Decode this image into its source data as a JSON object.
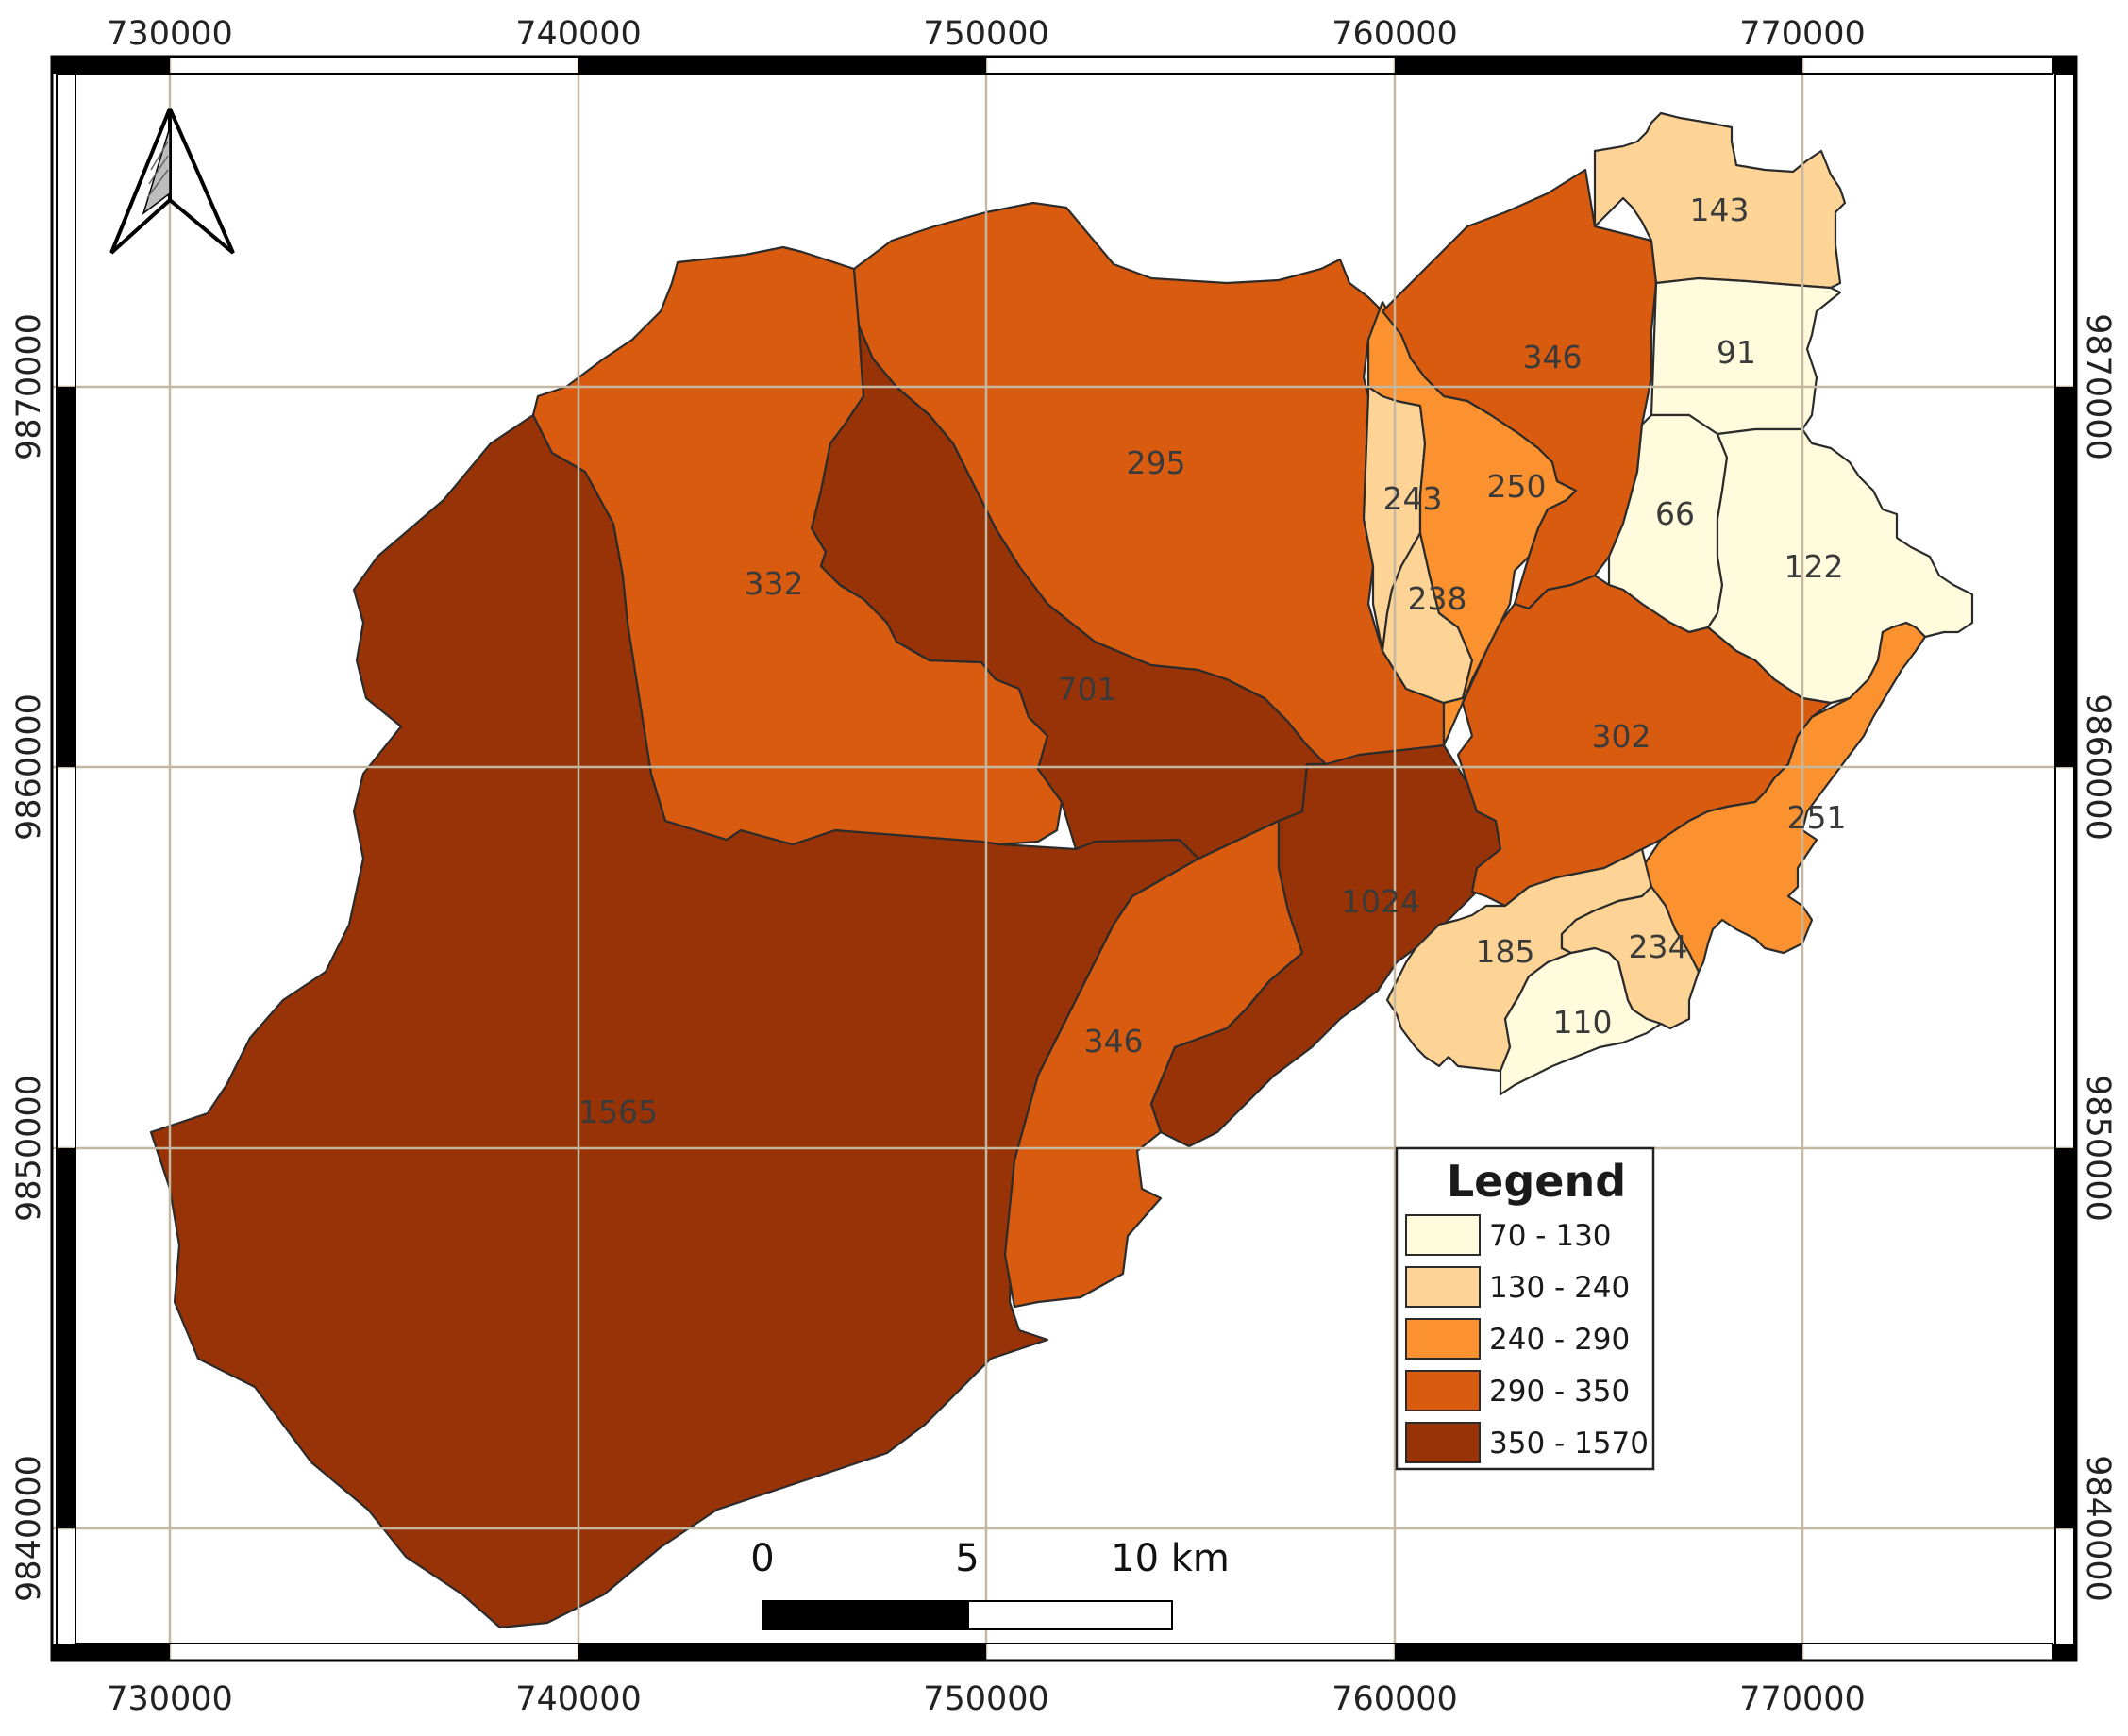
{
  "map": {
    "x_ticks": [
      "730000",
      "740000",
      "750000",
      "760000",
      "770000"
    ],
    "y_ticks": [
      "9870000",
      "9860000",
      "9850000",
      "9840000"
    ],
    "legend": {
      "title": "Legend",
      "items": [
        {
          "label": "70 - 130",
          "color": "#fffbdc"
        },
        {
          "label": "130 - 240",
          "color": "#fdd495"
        },
        {
          "label": "240 - 290",
          "color": "#fb922f"
        },
        {
          "label": "290 - 350",
          "color": "#d95b10"
        },
        {
          "label": "350 - 1570",
          "color": "#973306"
        }
      ]
    },
    "scale_bar": {
      "labels": [
        "0",
        "5",
        "10 km"
      ]
    },
    "north_arrow": "north-arrow-icon",
    "regions": [
      {
        "id": "r1565",
        "label": "1565",
        "class": 4
      },
      {
        "id": "r346s",
        "label": "346",
        "class": 3
      },
      {
        "id": "r1024",
        "label": "1024",
        "class": 4
      },
      {
        "id": "r332",
        "label": "332",
        "class": 3
      },
      {
        "id": "r701",
        "label": "701",
        "class": 4
      },
      {
        "id": "r295",
        "label": "295",
        "class": 3
      },
      {
        "id": "r243",
        "label": "243",
        "class": 1
      },
      {
        "id": "r238",
        "label": "238",
        "class": 1
      },
      {
        "id": "r250",
        "label": "250",
        "class": 2
      },
      {
        "id": "r346n",
        "label": "346",
        "class": 3
      },
      {
        "id": "r143",
        "label": "143",
        "class": 1
      },
      {
        "id": "r91",
        "label": "91",
        "class": 0
      },
      {
        "id": "r66",
        "label": "66",
        "class": 0
      },
      {
        "id": "r122",
        "label": "122",
        "class": 0
      },
      {
        "id": "r302",
        "label": "302",
        "class": 3
      },
      {
        "id": "r251",
        "label": "251",
        "class": 2
      },
      {
        "id": "r185",
        "label": "185",
        "class": 1
      },
      {
        "id": "r234",
        "label": "234",
        "class": 1
      },
      {
        "id": "r110",
        "label": "110",
        "class": 0
      }
    ]
  }
}
